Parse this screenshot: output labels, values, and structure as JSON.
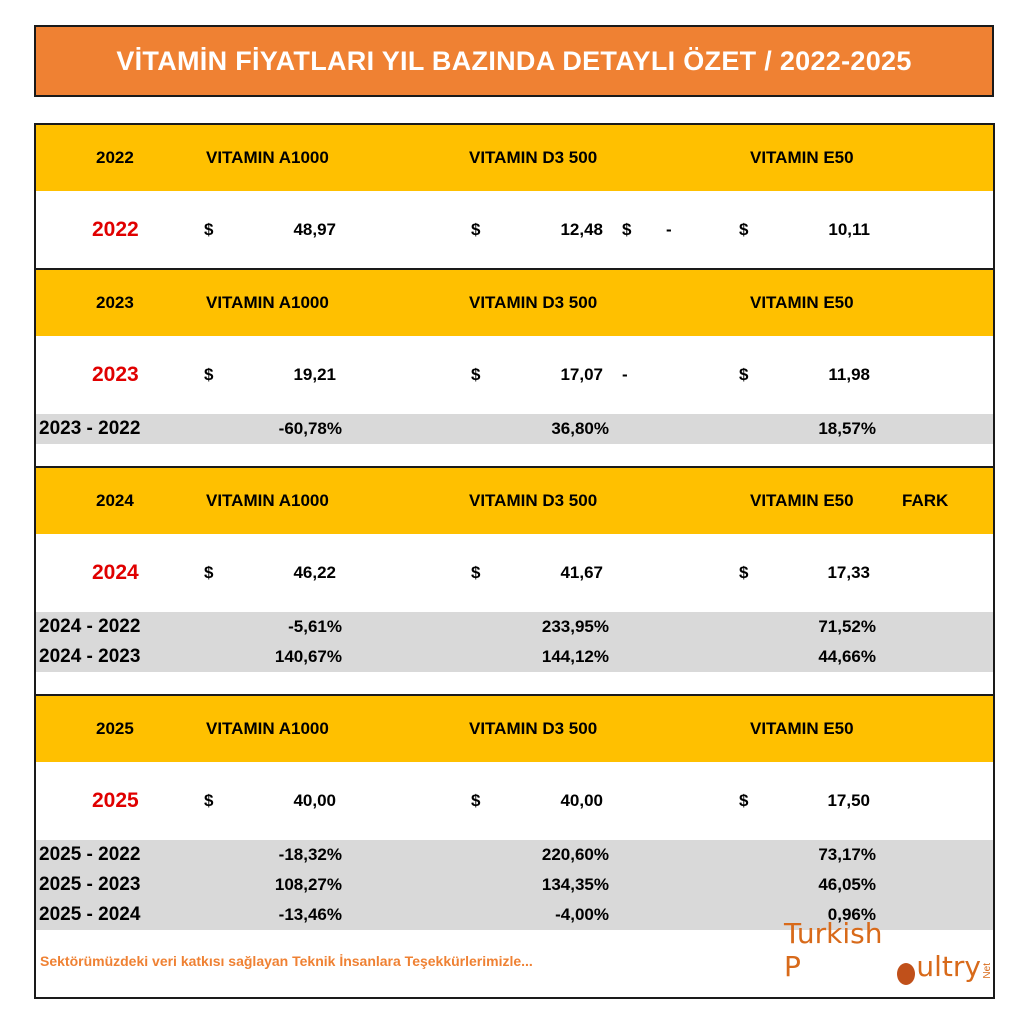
{
  "title": "VİTAMİN FİYATLARI YIL BAZINDA DETAYLI ÖZET / 2022-2025",
  "columns": {
    "a": "VITAMIN A1000",
    "d": "VITAMIN D3 500",
    "e": "VITAMIN E50",
    "fark": "FARK"
  },
  "currency": "$",
  "dash": "-",
  "blocks": [
    {
      "year": "2022",
      "a": "48,97",
      "d": "12,48",
      "e": "10,11"
    },
    {
      "year": "2023",
      "a": "19,21",
      "d": "17,07",
      "e": "11,98",
      "changes": [
        {
          "label": "2023 - 2022",
          "a": "-60,78%",
          "d": "36,80%",
          "e": "18,57%"
        }
      ]
    },
    {
      "year": "2024",
      "a": "46,22",
      "d": "41,67",
      "e": "17,33",
      "changes": [
        {
          "label": "2024 - 2022",
          "a": "-5,61%",
          "d": "233,95%",
          "e": "71,52%"
        },
        {
          "label": "2024 - 2023",
          "a": "140,67%",
          "d": "144,12%",
          "e": "44,66%"
        }
      ]
    },
    {
      "year": "2025",
      "a": "40,00",
      "d": "40,00",
      "e": "17,50",
      "changes": [
        {
          "label": "2025 - 2022",
          "a": "-18,32%",
          "d": "220,60%",
          "e": "73,17%"
        },
        {
          "label": "2025 - 2023",
          "a": "108,27%",
          "d": "134,35%",
          "e": "46,05%"
        },
        {
          "label": "2025 - 2024",
          "a": "-13,46%",
          "d": "-4,00%",
          "e": "0,96%"
        }
      ]
    }
  ],
  "footer": "Sektörümüzdeki veri katkısı sağlayan Teknik İnsanlara Teşekkürlerimizle...",
  "logo": {
    "part1": "Turkish P",
    "part2": "ultry",
    "net": "Net"
  },
  "colors": {
    "title_bg": "#ef8133",
    "header_bg": "#ffc000",
    "change_bg": "#d9d9d9",
    "year_red": "#e00000"
  }
}
